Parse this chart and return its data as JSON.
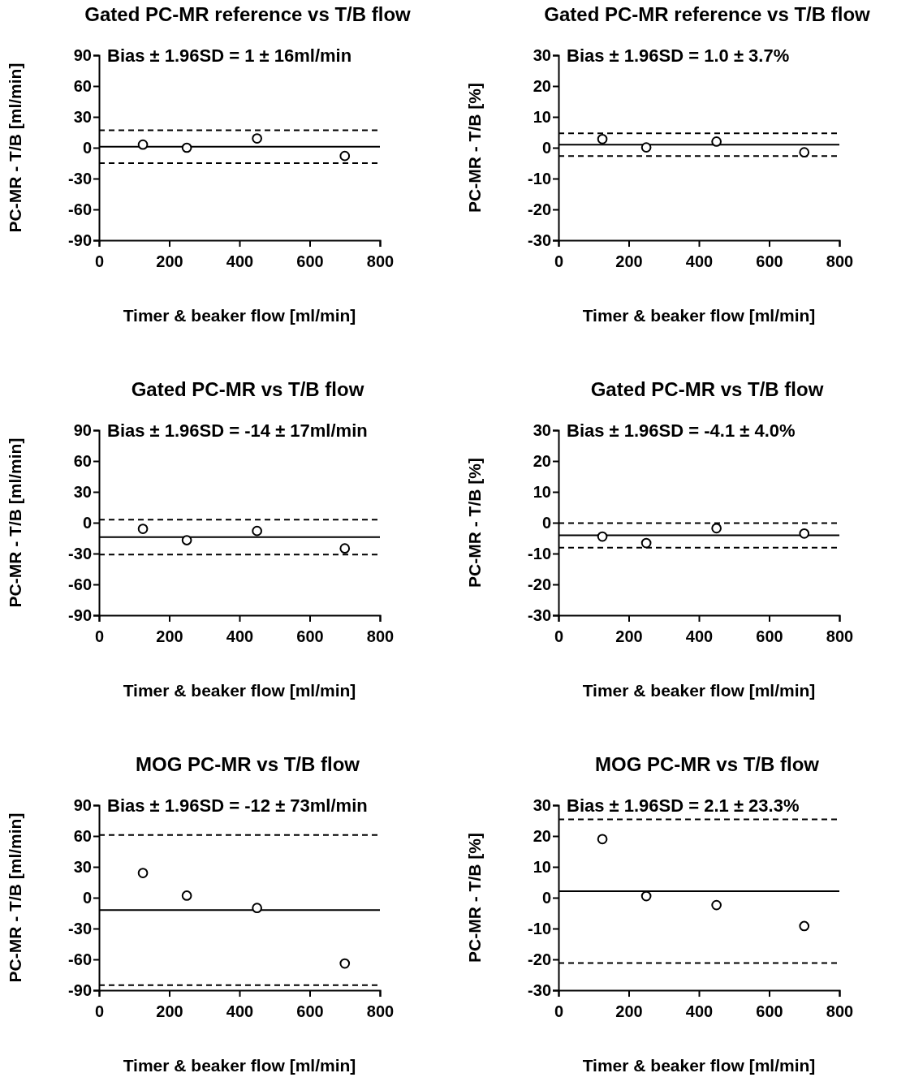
{
  "chart_data": [
    {
      "type": "scatter",
      "title": "Gated PC-MR reference vs T/B flow",
      "xlabel": "Timer & beaker flow [ml/min]",
      "ylabel": "PC-MR - T/B [ml/min]",
      "annotations": [
        "Bias ± 1.96SD = 1 ± 16ml/min"
      ],
      "x": [
        125,
        250,
        450,
        700
      ],
      "series": [
        {
          "color": "#000000",
          "values": [
            3,
            0,
            9,
            -8
          ]
        }
      ],
      "xlim": [
        0,
        800
      ],
      "xticks": [
        0,
        200,
        400,
        600,
        800
      ],
      "ylim": [
        -90,
        90
      ],
      "yticks": [
        -90,
        -60,
        -30,
        0,
        30,
        60,
        90
      ],
      "marker": "circle",
      "ref_lines": [
        {
          "axis": "y",
          "value": 1,
          "line_style": "solid",
          "color": "#000000"
        },
        {
          "axis": "y",
          "value": 17,
          "line_style": "dashed",
          "color": "#000000"
        },
        {
          "axis": "y",
          "value": -15,
          "line_style": "dashed",
          "color": "#000000"
        }
      ]
    },
    {
      "type": "scatter",
      "title": "Gated PC-MR reference vs T/B flow",
      "xlabel": "Timer & beaker flow [ml/min]",
      "ylabel": "PC-MR - T/B [%]",
      "annotations": [
        "Bias ± 1.96SD = 1.0 ± 3.7%"
      ],
      "x": [
        125,
        250,
        450,
        700
      ],
      "series": [
        {
          "color": "#000000",
          "values": [
            2.8,
            0.1,
            2.0,
            -1.5
          ]
        }
      ],
      "xlim": [
        0,
        800
      ],
      "xticks": [
        0,
        200,
        400,
        600,
        800
      ],
      "ylim": [
        -30,
        30
      ],
      "yticks": [
        -30,
        -20,
        -10,
        0,
        10,
        20,
        30
      ],
      "marker": "circle",
      "ref_lines": [
        {
          "axis": "y",
          "value": 1.0,
          "line_style": "solid",
          "color": "#000000"
        },
        {
          "axis": "y",
          "value": 4.7,
          "line_style": "dashed",
          "color": "#000000"
        },
        {
          "axis": "y",
          "value": -2.7,
          "line_style": "dashed",
          "color": "#000000"
        }
      ]
    },
    {
      "type": "scatter",
      "title": "Gated PC-MR vs T/B flow",
      "xlabel": "Timer & beaker flow [ml/min]",
      "ylabel": "PC-MR - T/B [ml/min]",
      "annotations": [
        "Bias ± 1.96SD = -14 ± 17ml/min"
      ],
      "x": [
        125,
        250,
        450,
        700
      ],
      "series": [
        {
          "color": "#000000",
          "values": [
            -6,
            -17,
            -8,
            -25
          ]
        }
      ],
      "xlim": [
        0,
        800
      ],
      "xticks": [
        0,
        200,
        400,
        600,
        800
      ],
      "ylim": [
        -90,
        90
      ],
      "yticks": [
        -90,
        -60,
        -30,
        0,
        30,
        60,
        90
      ],
      "marker": "circle",
      "ref_lines": [
        {
          "axis": "y",
          "value": -14,
          "line_style": "solid",
          "color": "#000000"
        },
        {
          "axis": "y",
          "value": 3,
          "line_style": "dashed",
          "color": "#000000"
        },
        {
          "axis": "y",
          "value": -31,
          "line_style": "dashed",
          "color": "#000000"
        }
      ]
    },
    {
      "type": "scatter",
      "title": "Gated PC-MR vs T/B flow",
      "xlabel": "Timer & beaker flow [ml/min]",
      "ylabel": "PC-MR - T/B [%]",
      "annotations": [
        "Bias ± 1.96SD = -4.1 ± 4.0%"
      ],
      "x": [
        125,
        250,
        450,
        700
      ],
      "series": [
        {
          "color": "#000000",
          "values": [
            -4.5,
            -6.6,
            -1.8,
            -3.5
          ]
        }
      ],
      "xlim": [
        0,
        800
      ],
      "xticks": [
        0,
        200,
        400,
        600,
        800
      ],
      "ylim": [
        -30,
        30
      ],
      "yticks": [
        -30,
        -20,
        -10,
        0,
        10,
        20,
        30
      ],
      "marker": "circle",
      "ref_lines": [
        {
          "axis": "y",
          "value": -4.1,
          "line_style": "solid",
          "color": "#000000"
        },
        {
          "axis": "y",
          "value": -0.1,
          "line_style": "dashed",
          "color": "#000000"
        },
        {
          "axis": "y",
          "value": -8.1,
          "line_style": "dashed",
          "color": "#000000"
        }
      ]
    },
    {
      "type": "scatter",
      "title": "MOG PC-MR vs T/B flow",
      "xlabel": "Timer & beaker flow [ml/min]",
      "ylabel": "PC-MR - T/B [ml/min]",
      "annotations": [
        "Bias ± 1.96SD = -12 ± 73ml/min"
      ],
      "x": [
        125,
        250,
        450,
        700
      ],
      "series": [
        {
          "color": "#000000",
          "values": [
            24,
            2,
            -10,
            -64
          ]
        }
      ],
      "xlim": [
        0,
        800
      ],
      "xticks": [
        0,
        200,
        400,
        600,
        800
      ],
      "ylim": [
        -90,
        90
      ],
      "yticks": [
        -90,
        -60,
        -30,
        0,
        30,
        60,
        90
      ],
      "marker": "circle",
      "ref_lines": [
        {
          "axis": "y",
          "value": -12,
          "line_style": "solid",
          "color": "#000000"
        },
        {
          "axis": "y",
          "value": 61,
          "line_style": "dashed",
          "color": "#000000"
        },
        {
          "axis": "y",
          "value": -85,
          "line_style": "dashed",
          "color": "#000000"
        }
      ]
    },
    {
      "type": "scatter",
      "title": "MOG PC-MR vs T/B flow",
      "xlabel": "Timer & beaker flow [ml/min]",
      "ylabel": "PC-MR - T/B [%]",
      "annotations": [
        "Bias ± 1.96SD = 2.1 ± 23.3%"
      ],
      "x": [
        125,
        250,
        450,
        700
      ],
      "series": [
        {
          "color": "#000000",
          "values": [
            19,
            0.5,
            -2.4,
            -9.2
          ]
        }
      ],
      "xlim": [
        0,
        800
      ],
      "xticks": [
        0,
        200,
        400,
        600,
        800
      ],
      "ylim": [
        -30,
        30
      ],
      "yticks": [
        -30,
        -20,
        -10,
        0,
        10,
        20,
        30
      ],
      "marker": "circle",
      "ref_lines": [
        {
          "axis": "y",
          "value": 2.1,
          "line_style": "solid",
          "color": "#000000"
        },
        {
          "axis": "y",
          "value": 25.4,
          "line_style": "dashed",
          "color": "#000000"
        },
        {
          "axis": "y",
          "value": -21.2,
          "line_style": "dashed",
          "color": "#000000"
        }
      ]
    }
  ]
}
